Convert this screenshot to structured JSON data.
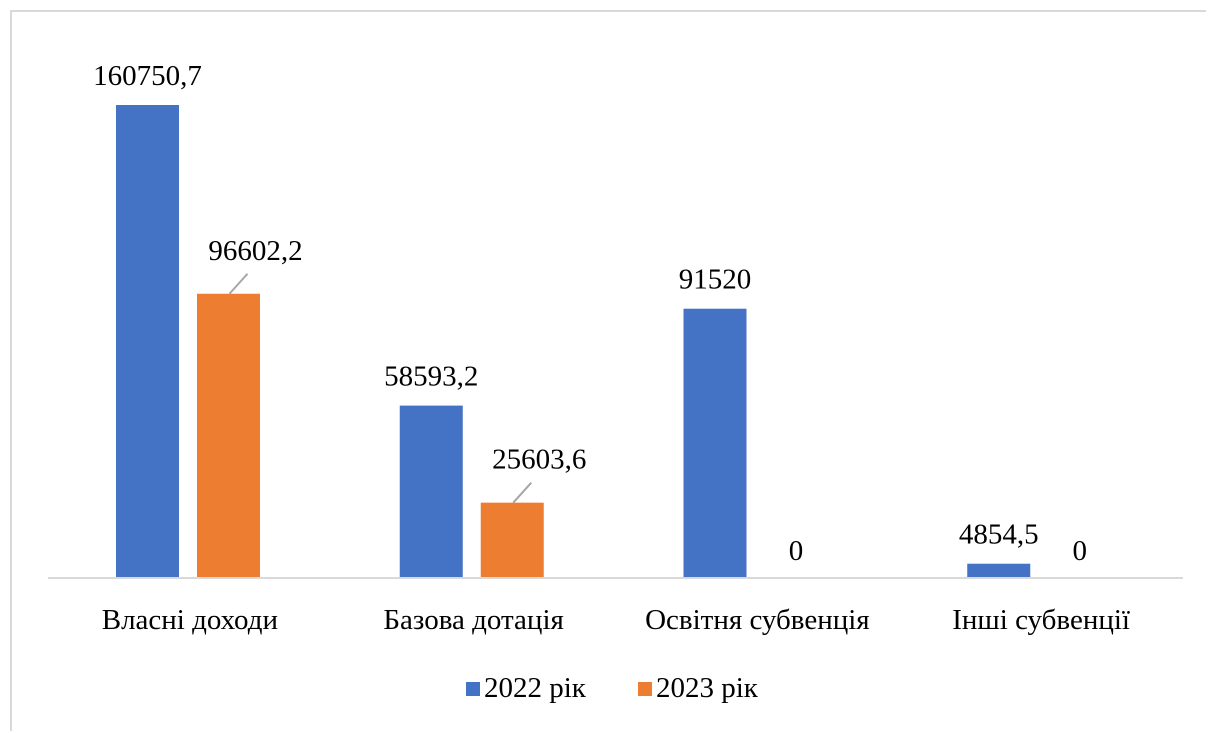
{
  "chart_data": {
    "type": "bar",
    "categories": [
      "Власні доходи",
      "Базова дотація",
      "Освітня субвенція",
      "Інші субвенції"
    ],
    "series": [
      {
        "name": "2022 рік",
        "color": "#4472c4",
        "values": [
          160750.7,
          58593.2,
          91520,
          4854.5
        ],
        "labels": [
          "160750,7",
          "58593,2",
          "91520",
          "4854,5"
        ]
      },
      {
        "name": "2023 рік",
        "color": "#ed7d31",
        "values": [
          96602.2,
          25603.6,
          0,
          0
        ],
        "labels": [
          "96602,2",
          "25603,6",
          "0",
          "0"
        ]
      }
    ],
    "ylim": [
      0,
      160750.7
    ],
    "grid": false,
    "legend_position": "bottom"
  }
}
